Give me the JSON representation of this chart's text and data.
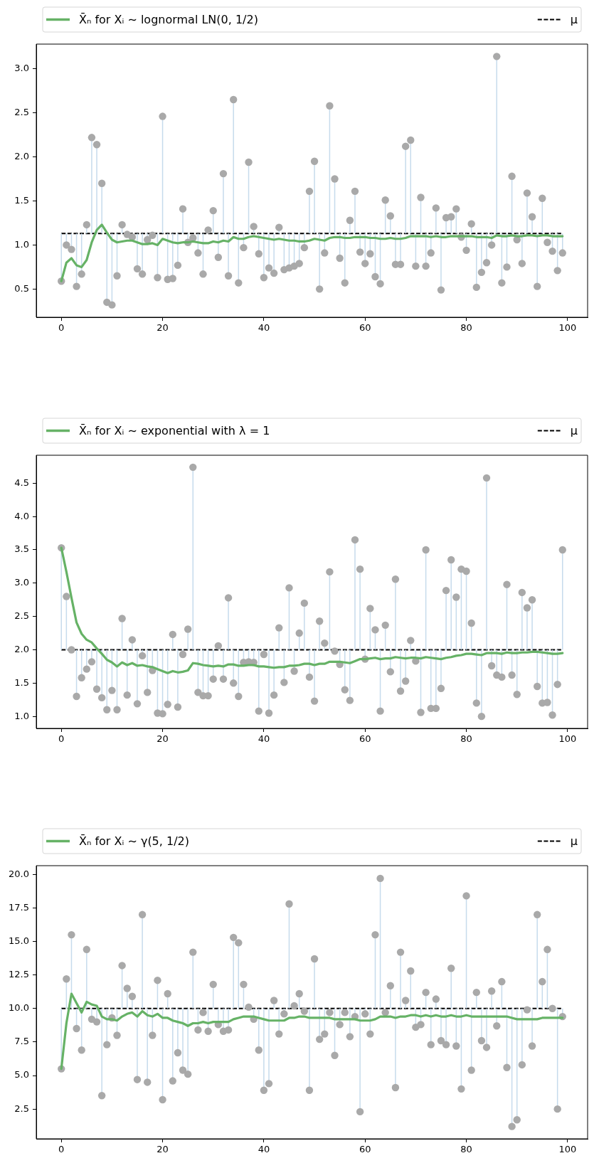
{
  "chart_data": [
    {
      "type": "line",
      "legend": "top",
      "xlim": [
        -4.95,
        103.95
      ],
      "xticks": [
        0,
        20,
        40,
        60,
        80,
        100
      ],
      "ylim": [
        0.18,
        3.28
      ],
      "yticks": [
        0.5,
        {
          "value": 1,
          "label": "1.0"
        },
        1.5,
        {
          "value": 2,
          "label": "2.0"
        },
        2.5,
        {
          "value": 3,
          "label": "3.0"
        }
      ],
      "x": [
        0,
        1,
        2,
        3,
        4,
        5,
        6,
        7,
        8,
        9,
        10,
        11,
        12,
        13,
        14,
        15,
        16,
        17,
        18,
        19,
        20,
        21,
        22,
        23,
        24,
        25,
        26,
        27,
        28,
        29,
        30,
        31,
        32,
        33,
        34,
        35,
        36,
        37,
        38,
        39,
        40,
        41,
        42,
        43,
        44,
        45,
        46,
        47,
        48,
        49,
        50,
        51,
        52,
        53,
        54,
        55,
        56,
        57,
        58,
        59,
        60,
        61,
        62,
        63,
        64,
        65,
        66,
        67,
        68,
        69,
        70,
        71,
        72,
        73,
        74,
        75,
        76,
        77,
        78,
        79,
        80,
        81,
        82,
        83,
        84,
        85,
        86,
        87,
        88,
        89,
        90,
        91,
        92,
        93,
        94,
        95,
        96,
        97,
        98,
        99
      ],
      "series": [
        {
          "type": "scatter",
          "marker": "circle",
          "color": "#a9a9a9",
          "values": [
            0.59,
            1.0,
            0.95,
            0.53,
            0.67,
            1.23,
            2.22,
            2.14,
            1.7,
            0.35,
            0.32,
            0.65,
            1.23,
            1.12,
            1.09,
            0.73,
            0.67,
            1.06,
            1.11,
            0.63,
            2.46,
            0.61,
            0.62,
            0.77,
            1.41,
            1.03,
            1.08,
            0.91,
            0.67,
            1.17,
            1.39,
            0.86,
            1.81,
            0.65,
            2.65,
            0.57,
            0.97,
            1.94,
            1.21,
            0.9,
            0.63,
            0.74,
            0.68,
            1.2,
            0.72,
            0.74,
            0.76,
            0.79,
            0.97,
            1.61,
            1.95,
            0.5,
            0.91,
            2.58,
            1.75,
            0.85,
            0.57,
            1.28,
            1.61,
            0.92,
            0.79,
            0.9,
            0.64,
            0.56,
            1.51,
            1.33,
            0.78,
            0.78,
            2.12,
            2.19,
            0.76,
            1.54,
            0.76,
            0.91,
            1.42,
            0.49,
            1.31,
            1.32,
            1.41,
            1.09,
            0.94,
            1.24,
            0.52,
            0.69,
            0.8,
            1.0,
            3.14,
            0.57,
            0.75,
            1.78,
            1.06,
            0.79,
            1.59,
            1.32,
            0.53,
            1.53,
            1.03,
            0.93,
            0.71,
            0.91
          ],
          "errors": [
            [
              0.59,
              1.13
            ],
            [
              1.0,
              1.13
            ],
            [
              0.95,
              1.13
            ],
            [
              0.53,
              1.13
            ],
            [
              0.67,
              1.13
            ],
            [
              1.13,
              1.23
            ],
            [
              1.13,
              2.22
            ],
            [
              1.13,
              2.14
            ],
            [
              1.13,
              1.7
            ],
            [
              0.35,
              1.13
            ],
            [
              0.32,
              1.13
            ],
            [
              0.65,
              1.13
            ],
            [
              1.13,
              1.23
            ],
            null,
            null,
            [
              0.73,
              1.13
            ],
            [
              0.67,
              1.13
            ],
            [
              1.06,
              1.13
            ],
            null,
            [
              0.63,
              1.13
            ],
            [
              1.13,
              2.46
            ],
            [
              0.61,
              1.13
            ],
            [
              0.62,
              1.13
            ],
            [
              0.77,
              1.13
            ],
            [
              1.13,
              1.41
            ],
            [
              1.03,
              1.13
            ],
            null,
            [
              0.91,
              1.13
            ],
            [
              0.67,
              1.13
            ],
            null,
            [
              1.13,
              1.39
            ],
            [
              0.86,
              1.13
            ],
            [
              1.13,
              1.81
            ],
            [
              0.65,
              1.13
            ],
            [
              1.13,
              2.65
            ],
            [
              0.57,
              1.13
            ],
            [
              0.97,
              1.13
            ],
            [
              1.13,
              1.94
            ],
            [
              1.13,
              1.21
            ],
            [
              0.9,
              1.13
            ],
            [
              0.63,
              1.13
            ],
            [
              0.74,
              1.13
            ],
            [
              0.68,
              1.13
            ],
            [
              1.13,
              1.2
            ],
            [
              0.72,
              1.13
            ],
            [
              0.74,
              1.13
            ],
            [
              0.76,
              1.13
            ],
            [
              0.79,
              1.13
            ],
            [
              0.97,
              1.13
            ],
            [
              1.13,
              1.61
            ],
            [
              1.13,
              1.95
            ],
            [
              0.5,
              1.13
            ],
            [
              0.91,
              1.13
            ],
            [
              1.13,
              2.58
            ],
            [
              1.13,
              1.75
            ],
            [
              0.85,
              1.13
            ],
            [
              0.57,
              1.13
            ],
            [
              1.13,
              1.28
            ],
            [
              1.13,
              1.61
            ],
            [
              0.92,
              1.13
            ],
            [
              0.79,
              1.13
            ],
            [
              0.9,
              1.13
            ],
            [
              0.64,
              1.13
            ],
            [
              0.56,
              1.13
            ],
            [
              1.13,
              1.51
            ],
            [
              1.13,
              1.33
            ],
            [
              0.78,
              1.13
            ],
            [
              0.78,
              1.13
            ],
            [
              1.13,
              2.12
            ],
            [
              1.13,
              2.19
            ],
            [
              0.76,
              1.13
            ],
            [
              1.13,
              1.54
            ],
            [
              0.76,
              1.13
            ],
            [
              0.91,
              1.13
            ],
            [
              1.13,
              1.42
            ],
            [
              0.49,
              1.13
            ],
            [
              1.13,
              1.31
            ],
            [
              1.13,
              1.32
            ],
            [
              1.13,
              1.41
            ],
            null,
            [
              0.94,
              1.13
            ],
            [
              1.13,
              1.24
            ],
            [
              0.52,
              1.13
            ],
            [
              0.69,
              1.13
            ],
            [
              0.8,
              1.13
            ],
            [
              1.0,
              1.13
            ],
            [
              1.13,
              3.14
            ],
            [
              0.57,
              1.13
            ],
            [
              0.75,
              1.13
            ],
            [
              1.13,
              1.78
            ],
            [
              1.06,
              1.13
            ],
            [
              0.79,
              1.13
            ],
            [
              1.13,
              1.59
            ],
            [
              1.13,
              1.32
            ],
            [
              0.53,
              1.13
            ],
            [
              1.13,
              1.53
            ],
            null,
            [
              0.93,
              1.13
            ],
            [
              0.71,
              1.13
            ],
            [
              0.91,
              1.13
            ]
          ]
        },
        {
          "name": "X̄ₙ for Xᵢ ∼ lognormal LN(0, 1/2)",
          "color": "#66b266",
          "values": [
            0.59,
            0.8,
            0.85,
            0.77,
            0.75,
            0.83,
            1.03,
            1.17,
            1.23,
            1.14,
            1.06,
            1.03,
            1.04,
            1.05,
            1.05,
            1.03,
            1.01,
            1.01,
            1.02,
            1.0,
            1.07,
            1.05,
            1.03,
            1.02,
            1.03,
            1.03,
            1.04,
            1.03,
            1.02,
            1.02,
            1.04,
            1.03,
            1.05,
            1.04,
            1.09,
            1.07,
            1.07,
            1.09,
            1.1,
            1.09,
            1.08,
            1.07,
            1.06,
            1.07,
            1.06,
            1.05,
            1.05,
            1.04,
            1.04,
            1.05,
            1.07,
            1.06,
            1.05,
            1.08,
            1.09,
            1.09,
            1.08,
            1.08,
            1.09,
            1.09,
            1.09,
            1.08,
            1.08,
            1.07,
            1.07,
            1.08,
            1.07,
            1.07,
            1.08,
            1.1,
            1.1,
            1.1,
            1.1,
            1.09,
            1.1,
            1.09,
            1.09,
            1.1,
            1.1,
            1.1,
            1.1,
            1.1,
            1.09,
            1.09,
            1.09,
            1.08,
            1.11,
            1.1,
            1.1,
            1.11,
            1.1,
            1.1,
            1.11,
            1.11,
            1.1,
            1.11,
            1.11,
            1.1,
            1.1,
            1.1
          ]
        }
      ],
      "ref_lines": [
        {
          "axis": "y",
          "value": 1.13,
          "label": "μ",
          "color": "#000000",
          "line_style": "dashed"
        }
      ]
    },
    {
      "type": "line",
      "legend": "top",
      "xlim": [
        -4.95,
        103.95
      ],
      "xticks": [
        0,
        20,
        40,
        60,
        80,
        100
      ],
      "ylim": [
        0.82,
        4.92
      ],
      "yticks": [
        {
          "value": 1,
          "label": "1.0"
        },
        1.5,
        {
          "value": 2,
          "label": "2.0"
        },
        2.5,
        {
          "value": 3,
          "label": "3.0"
        },
        3.5,
        {
          "value": 4,
          "label": "4.0"
        },
        4.5
      ],
      "x": [
        0,
        1,
        2,
        3,
        4,
        5,
        6,
        7,
        8,
        9,
        10,
        11,
        12,
        13,
        14,
        15,
        16,
        17,
        18,
        19,
        20,
        21,
        22,
        23,
        24,
        25,
        26,
        27,
        28,
        29,
        30,
        31,
        32,
        33,
        34,
        35,
        36,
        37,
        38,
        39,
        40,
        41,
        42,
        43,
        44,
        45,
        46,
        47,
        48,
        49,
        50,
        51,
        52,
        53,
        54,
        55,
        56,
        57,
        58,
        59,
        60,
        61,
        62,
        63,
        64,
        65,
        66,
        67,
        68,
        69,
        70,
        71,
        72,
        73,
        74,
        75,
        76,
        77,
        78,
        79,
        80,
        81,
        82,
        83,
        84,
        85,
        86,
        87,
        88,
        89,
        90,
        91,
        92,
        93,
        94,
        95,
        96,
        97,
        98,
        99
      ],
      "series": [
        {
          "type": "scatter",
          "marker": "circle",
          "color": "#a9a9a9",
          "values": [
            3.53,
            2.8,
            2.0,
            1.3,
            1.58,
            1.71,
            1.82,
            1.41,
            1.28,
            1.1,
            1.39,
            1.1,
            2.47,
            1.32,
            2.15,
            1.19,
            1.91,
            1.36,
            1.69,
            1.05,
            1.04,
            1.18,
            2.23,
            1.14,
            1.93,
            2.31,
            4.74,
            1.36,
            1.31,
            1.31,
            1.56,
            2.06,
            1.56,
            2.78,
            1.5,
            1.3,
            1.81,
            1.82,
            1.81,
            1.08,
            1.93,
            1.05,
            1.32,
            2.33,
            1.51,
            2.93,
            1.68,
            2.25,
            2.7,
            1.59,
            1.23,
            2.43,
            2.1,
            3.17,
            1.98,
            1.78,
            1.4,
            1.24,
            3.65,
            3.21,
            1.86,
            2.62,
            2.3,
            1.08,
            2.37,
            1.67,
            3.06,
            1.38,
            1.53,
            2.14,
            1.83,
            1.06,
            3.5,
            1.12,
            1.12,
            1.42,
            2.89,
            3.35,
            2.79,
            3.21,
            3.18,
            2.4,
            1.2,
            1.0,
            4.58,
            1.76,
            1.62,
            1.59,
            2.98,
            1.62,
            1.33,
            2.86,
            2.63,
            2.75,
            1.45,
            1.2,
            1.21,
            1.02,
            1.48,
            3.5
          ],
          "errors": [
            [
              2,
              3.53
            ],
            [
              2,
              2.8
            ],
            null,
            [
              1.3,
              2
            ],
            [
              1.58,
              2
            ],
            [
              1.71,
              2
            ],
            [
              1.82,
              2
            ],
            [
              1.41,
              2
            ],
            [
              1.28,
              2
            ],
            [
              1.1,
              2
            ],
            [
              1.39,
              2
            ],
            [
              1.1,
              2
            ],
            [
              2,
              2.47
            ],
            [
              1.32,
              2
            ],
            [
              2,
              2.15
            ],
            [
              1.19,
              2
            ],
            [
              1.91,
              2
            ],
            [
              1.36,
              2
            ],
            [
              1.69,
              2
            ],
            [
              1.05,
              2
            ],
            [
              1.04,
              2
            ],
            [
              1.18,
              2
            ],
            [
              2,
              2.23
            ],
            [
              1.14,
              2
            ],
            [
              1.93,
              2
            ],
            [
              2,
              2.31
            ],
            [
              2,
              4.74
            ],
            [
              1.36,
              2
            ],
            [
              1.31,
              2
            ],
            [
              1.31,
              2
            ],
            [
              1.56,
              2
            ],
            [
              2,
              2.06
            ],
            [
              1.56,
              2
            ],
            [
              2,
              2.78
            ],
            [
              1.5,
              2
            ],
            [
              1.3,
              2
            ],
            [
              1.81,
              2
            ],
            [
              1.82,
              2
            ],
            [
              1.81,
              2
            ],
            [
              1.08,
              2
            ],
            [
              1.93,
              2
            ],
            [
              1.05,
              2
            ],
            [
              1.32,
              2
            ],
            [
              2,
              2.33
            ],
            [
              1.51,
              2
            ],
            [
              2,
              2.93
            ],
            [
              1.68,
              2
            ],
            [
              2,
              2.25
            ],
            [
              2,
              2.7
            ],
            [
              1.59,
              2
            ],
            [
              1.23,
              2
            ],
            [
              2,
              2.43
            ],
            [
              2,
              2.1
            ],
            [
              2,
              3.17
            ],
            null,
            [
              1.78,
              2
            ],
            [
              1.4,
              2
            ],
            [
              1.24,
              2
            ],
            [
              2,
              3.65
            ],
            [
              2,
              3.21
            ],
            [
              1.86,
              2
            ],
            [
              2,
              2.62
            ],
            [
              2,
              2.3
            ],
            [
              1.08,
              2
            ],
            [
              2,
              2.37
            ],
            [
              1.67,
              2
            ],
            [
              2,
              3.06
            ],
            [
              1.38,
              2
            ],
            [
              1.53,
              2
            ],
            [
              2,
              2.14
            ],
            [
              1.83,
              2
            ],
            [
              1.06,
              2
            ],
            [
              2,
              3.5
            ],
            [
              1.12,
              2
            ],
            [
              1.12,
              2
            ],
            [
              1.42,
              2
            ],
            [
              2,
              2.89
            ],
            [
              2,
              3.35
            ],
            [
              2,
              2.79
            ],
            [
              2,
              3.21
            ],
            [
              2,
              3.18
            ],
            [
              2,
              2.4
            ],
            [
              1.2,
              2
            ],
            [
              1.0,
              2
            ],
            [
              2,
              4.58
            ],
            [
              1.76,
              2
            ],
            [
              1.62,
              2
            ],
            [
              1.59,
              2
            ],
            [
              2,
              2.98
            ],
            [
              1.62,
              2
            ],
            [
              1.33,
              2
            ],
            [
              2,
              2.86
            ],
            [
              2,
              2.63
            ],
            [
              2,
              2.75
            ],
            [
              1.45,
              2
            ],
            [
              1.2,
              2
            ],
            [
              1.21,
              2
            ],
            [
              1.02,
              2
            ],
            [
              1.48,
              2
            ],
            [
              2,
              3.5
            ]
          ]
        },
        {
          "name": "X̄ₙ for Xᵢ ∼ exponential with λ = 1",
          "color": "#66b266",
          "values": [
            3.53,
            3.17,
            2.78,
            2.41,
            2.24,
            2.15,
            2.11,
            2.02,
            1.94,
            1.85,
            1.81,
            1.75,
            1.81,
            1.77,
            1.8,
            1.76,
            1.77,
            1.75,
            1.74,
            1.71,
            1.68,
            1.65,
            1.68,
            1.66,
            1.67,
            1.69,
            1.8,
            1.79,
            1.77,
            1.76,
            1.75,
            1.76,
            1.75,
            1.78,
            1.78,
            1.76,
            1.76,
            1.77,
            1.77,
            1.75,
            1.75,
            1.74,
            1.73,
            1.74,
            1.74,
            1.76,
            1.76,
            1.77,
            1.79,
            1.79,
            1.77,
            1.79,
            1.79,
            1.82,
            1.82,
            1.82,
            1.81,
            1.8,
            1.83,
            1.86,
            1.86,
            1.87,
            1.88,
            1.86,
            1.87,
            1.87,
            1.89,
            1.88,
            1.87,
            1.88,
            1.88,
            1.87,
            1.89,
            1.88,
            1.87,
            1.86,
            1.88,
            1.89,
            1.91,
            1.92,
            1.94,
            1.94,
            1.93,
            1.92,
            1.95,
            1.95,
            1.95,
            1.94,
            1.96,
            1.95,
            1.95,
            1.96,
            1.96,
            1.97,
            1.97,
            1.96,
            1.95,
            1.94,
            1.94,
            1.95
          ]
        }
      ],
      "ref_lines": [
        {
          "axis": "y",
          "value": 2,
          "label": "μ",
          "color": "#000000",
          "line_style": "dashed"
        }
      ]
    },
    {
      "type": "line",
      "legend": "top",
      "xlim": [
        -4.95,
        103.95
      ],
      "xticks": [
        0,
        20,
        40,
        60,
        80,
        100
      ],
      "ylim": [
        0.28,
        20.65
      ],
      "yticks": [
        2.5,
        {
          "value": 5,
          "label": "5.0"
        },
        7.5,
        {
          "value": 10,
          "label": "10.0"
        },
        12.5,
        {
          "value": 15,
          "label": "15.0"
        },
        17.5,
        {
          "value": 20,
          "label": "20.0"
        }
      ],
      "x": [
        0,
        1,
        2,
        3,
        4,
        5,
        6,
        7,
        8,
        9,
        10,
        11,
        12,
        13,
        14,
        15,
        16,
        17,
        18,
        19,
        20,
        21,
        22,
        23,
        24,
        25,
        26,
        27,
        28,
        29,
        30,
        31,
        32,
        33,
        34,
        35,
        36,
        37,
        38,
        39,
        40,
        41,
        42,
        43,
        44,
        45,
        46,
        47,
        48,
        49,
        50,
        51,
        52,
        53,
        54,
        55,
        56,
        57,
        58,
        59,
        60,
        61,
        62,
        63,
        64,
        65,
        66,
        67,
        68,
        69,
        70,
        71,
        72,
        73,
        74,
        75,
        76,
        77,
        78,
        79,
        80,
        81,
        82,
        83,
        84,
        85,
        86,
        87,
        88,
        89,
        90,
        91,
        92,
        93,
        94,
        95,
        96,
        97,
        98,
        99
      ],
      "series": [
        {
          "type": "scatter",
          "marker": "circle",
          "color": "#a9a9a9",
          "values": [
            5.5,
            12.2,
            15.5,
            8.5,
            6.9,
            14.4,
            9.2,
            9.0,
            3.5,
            7.3,
            9.3,
            8.0,
            13.2,
            11.5,
            10.9,
            4.7,
            17.0,
            4.5,
            8.0,
            12.1,
            3.2,
            11.1,
            4.6,
            6.7,
            5.4,
            5.1,
            14.2,
            8.4,
            9.7,
            8.3,
            11.8,
            8.8,
            8.3,
            8.4,
            15.3,
            14.9,
            11.8,
            10.1,
            9.2,
            6.9,
            3.9,
            4.4,
            10.6,
            8.1,
            9.6,
            17.8,
            10.2,
            11.1,
            9.8,
            3.9,
            13.7,
            7.7,
            8.1,
            9.7,
            6.5,
            8.8,
            9.7,
            7.9,
            9.4,
            2.3,
            9.6,
            8.1,
            15.5,
            19.7,
            9.7,
            11.7,
            4.1,
            14.2,
            10.6,
            12.8,
            8.6,
            8.8,
            11.2,
            7.3,
            10.7,
            7.6,
            7.3,
            13.0,
            7.2,
            4.0,
            18.4,
            5.4,
            11.2,
            7.6,
            7.1,
            11.3,
            8.7,
            12.0,
            5.6,
            1.2,
            1.7,
            5.8,
            9.9,
            7.2,
            17.0,
            12.0,
            14.4,
            10.0,
            2.5,
            9.4
          ],
          "errors": [
            [
              5.5,
              10
            ],
            [
              10,
              12.2
            ],
            [
              10,
              15.5
            ],
            [
              8.5,
              10
            ],
            [
              6.9,
              10
            ],
            [
              10,
              14.4
            ],
            [
              9.2,
              10
            ],
            [
              9.0,
              10
            ],
            [
              3.5,
              10
            ],
            [
              7.3,
              10
            ],
            [
              9.3,
              10
            ],
            [
              8.0,
              10
            ],
            [
              10,
              13.2
            ],
            [
              10,
              11.5
            ],
            [
              10,
              10.9
            ],
            [
              4.7,
              10
            ],
            [
              10,
              17.0
            ],
            [
              4.5,
              10
            ],
            [
              8.0,
              10
            ],
            [
              10,
              12.1
            ],
            [
              3.2,
              10
            ],
            [
              10,
              11.1
            ],
            [
              4.6,
              10
            ],
            [
              6.7,
              10
            ],
            [
              5.4,
              10
            ],
            [
              5.1,
              10
            ],
            [
              10,
              14.2
            ],
            [
              8.4,
              10
            ],
            null,
            [
              8.3,
              10
            ],
            [
              10,
              11.8
            ],
            [
              8.8,
              10
            ],
            [
              8.3,
              10
            ],
            [
              8.4,
              10
            ],
            [
              10,
              15.3
            ],
            [
              10,
              14.9
            ],
            [
              10,
              11.8
            ],
            null,
            [
              9.2,
              10
            ],
            [
              6.9,
              10
            ],
            [
              3.9,
              10
            ],
            [
              4.4,
              10
            ],
            [
              10,
              10.6
            ],
            [
              8.1,
              10
            ],
            [
              9.6,
              10
            ],
            [
              10,
              17.8
            ],
            null,
            [
              10,
              11.1
            ],
            null,
            [
              3.9,
              10
            ],
            [
              10,
              13.7
            ],
            [
              7.7,
              10
            ],
            [
              8.1,
              10
            ],
            null,
            [
              6.5,
              10
            ],
            [
              8.8,
              10
            ],
            null,
            [
              7.9,
              10
            ],
            [
              9.4,
              10
            ],
            [
              2.3,
              10
            ],
            [
              9.6,
              10
            ],
            [
              8.1,
              10
            ],
            [
              10,
              15.5
            ],
            [
              10,
              19.7
            ],
            null,
            [
              10,
              11.7
            ],
            [
              4.1,
              10
            ],
            [
              10,
              14.2
            ],
            [
              10,
              10.6
            ],
            [
              10,
              12.8
            ],
            [
              8.6,
              10
            ],
            [
              8.8,
              10
            ],
            [
              10,
              11.2
            ],
            [
              7.3,
              10
            ],
            [
              10,
              10.7
            ],
            [
              7.6,
              10
            ],
            [
              7.3,
              10
            ],
            [
              10,
              13.0
            ],
            [
              7.2,
              10
            ],
            [
              4.0,
              10
            ],
            [
              10,
              18.4
            ],
            [
              5.4,
              10
            ],
            [
              10,
              11.2
            ],
            [
              7.6,
              10
            ],
            [
              7.1,
              10
            ],
            [
              10,
              11.3
            ],
            [
              8.7,
              10
            ],
            [
              10,
              12.0
            ],
            [
              5.6,
              10
            ],
            [
              1.2,
              10
            ],
            [
              1.7,
              10
            ],
            [
              5.8,
              10
            ],
            null,
            [
              7.2,
              10
            ],
            [
              10,
              17.0
            ],
            [
              10,
              12.0
            ],
            [
              10,
              14.4
            ],
            null,
            [
              2.5,
              10
            ],
            [
              9.4,
              10
            ]
          ]
        },
        {
          "name": "X̄ₙ for Xᵢ ∼ γ(5, 1/2)",
          "color": "#66b266",
          "values": [
            5.5,
            8.9,
            11.1,
            10.4,
            9.7,
            10.5,
            10.3,
            10.2,
            9.4,
            9.2,
            9.2,
            9.1,
            9.4,
            9.6,
            9.7,
            9.4,
            9.8,
            9.5,
            9.4,
            9.6,
            9.3,
            9.3,
            9.1,
            9.0,
            8.9,
            8.7,
            8.9,
            8.9,
            9.0,
            8.9,
            9.0,
            9.0,
            9.0,
            9.0,
            9.2,
            9.3,
            9.4,
            9.4,
            9.4,
            9.3,
            9.2,
            9.1,
            9.1,
            9.1,
            9.1,
            9.3,
            9.3,
            9.4,
            9.4,
            9.3,
            9.3,
            9.3,
            9.3,
            9.3,
            9.2,
            9.2,
            9.2,
            9.2,
            9.2,
            9.1,
            9.1,
            9.1,
            9.2,
            9.4,
            9.4,
            9.4,
            9.3,
            9.4,
            9.4,
            9.5,
            9.5,
            9.4,
            9.5,
            9.4,
            9.5,
            9.4,
            9.4,
            9.5,
            9.4,
            9.4,
            9.5,
            9.4,
            9.4,
            9.4,
            9.4,
            9.4,
            9.4,
            9.4,
            9.4,
            9.3,
            9.2,
            9.2,
            9.2,
            9.2,
            9.2,
            9.3,
            9.3,
            9.3,
            9.3,
            9.3
          ]
        }
      ],
      "ref_lines": [
        {
          "axis": "y",
          "value": 10,
          "label": "μ",
          "color": "#000000",
          "line_style": "dashed"
        }
      ]
    }
  ]
}
